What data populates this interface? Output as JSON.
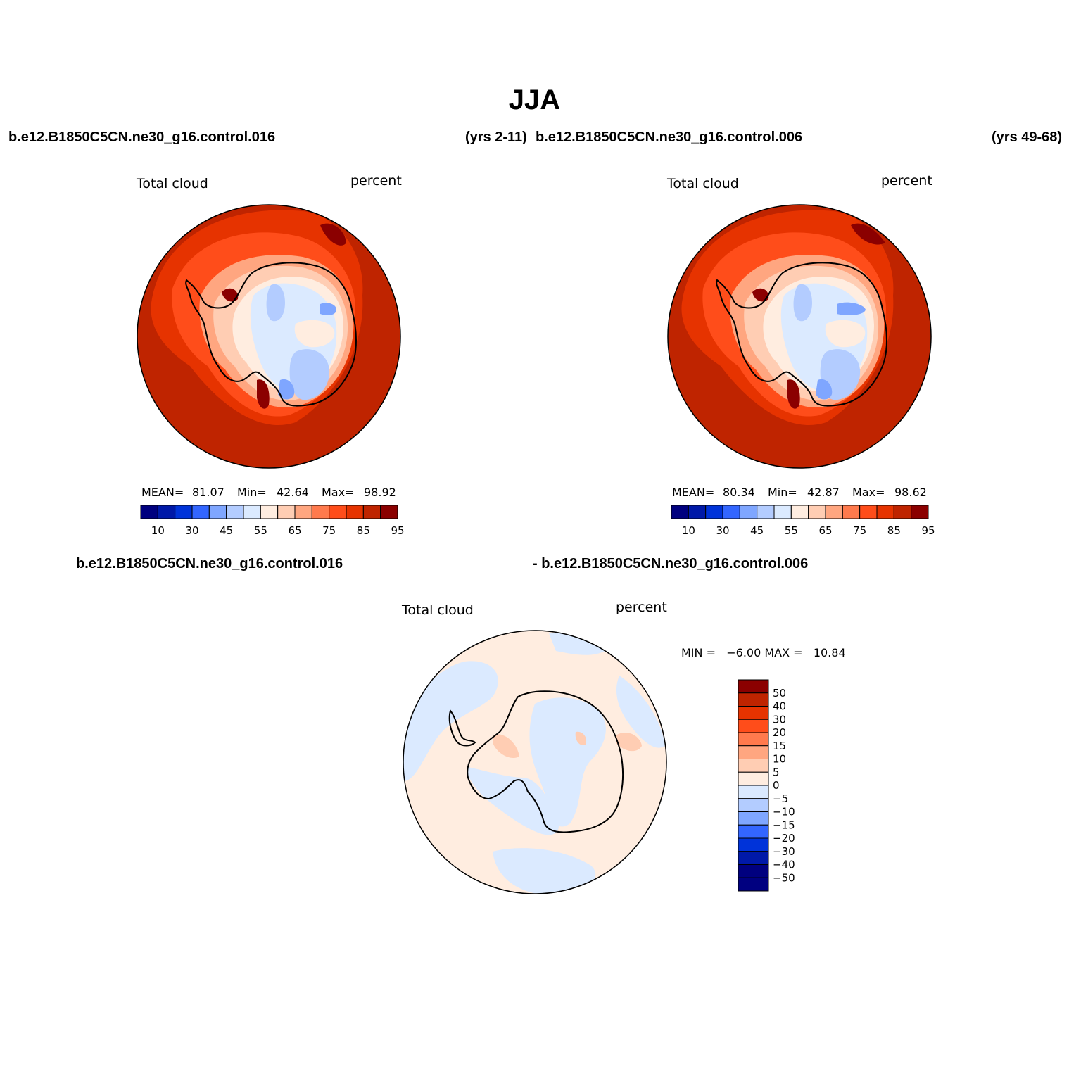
{
  "title": "JJA",
  "header": {
    "case1": "b.e12.B1850C5CN.ne30_g16.control.016",
    "case1_years": "(yrs 2-11)",
    "case2": "b.e12.B1850C5CN.ne30_g16.control.006",
    "case2_years": "(yrs 49-68)"
  },
  "panels": [
    {
      "variable": "Total cloud",
      "units": "percent",
      "stats": {
        "mean_label": "MEAN=",
        "mean": "81.07",
        "min_label": "Min=",
        "min": "42.64",
        "max_label": "Max=",
        "max": "98.92"
      }
    },
    {
      "variable": "Total cloud",
      "units": "percent",
      "stats": {
        "mean_label": "MEAN=",
        "mean": "80.34",
        "min_label": "Min=",
        "min": "42.87",
        "max_label": "Max=",
        "max": "98.62"
      }
    }
  ],
  "difference": {
    "header_left": "b.e12.B1850C5CN.ne30_g16.control.016",
    "header_right": "- b.e12.B1850C5CN.ne30_g16.control.006",
    "variable": "Total cloud",
    "units": "percent",
    "minmax": "MIN =   −6.00 MAX =   10.84"
  },
  "colorbar_main": {
    "colors": [
      "#00007f",
      "#0019a8",
      "#0033d9",
      "#3366ff",
      "#7fa6ff",
      "#b3ccff",
      "#dbeaff",
      "#ffede0",
      "#ffcdb3",
      "#ffa680",
      "#ff7a4d",
      "#ff4d1a",
      "#e63300",
      "#bf2400",
      "#8b0000"
    ],
    "tick_labels": [
      "10",
      "30",
      "45",
      "55",
      "65",
      "75",
      "85",
      "95"
    ]
  },
  "colorbar_diff": {
    "colors": [
      "#8b0000",
      "#bf2400",
      "#e63300",
      "#ff4d1a",
      "#ff7a4d",
      "#ffa680",
      "#ffcdb3",
      "#ffede0",
      "#dbeaff",
      "#b3ccff",
      "#7fa6ff",
      "#3366ff",
      "#0033d9",
      "#0019a8",
      "#00007f",
      "#000080"
    ],
    "tick_labels": [
      "50",
      "40",
      "30",
      "20",
      "15",
      "10",
      "5",
      "0",
      "−5",
      "−10",
      "−15",
      "−20",
      "−30",
      "−40",
      "−50"
    ]
  },
  "map_colors": {
    "ocean_far": "#bf2400",
    "ocean_mid": "#e63300",
    "ocean_near": "#ff4d1a",
    "coast_1": "#ffa680",
    "coast_2": "#ffcdb3",
    "interior_light": "#ffede0",
    "interior_blue_1": "#dbeaff",
    "interior_blue_2": "#b3ccff",
    "interior_blue_3": "#7fa6ff",
    "hot_spot": "#8b0000",
    "diff_positive": "#ffede0",
    "diff_negative": "#dbeaff",
    "diff_spot": "#ffcdb3"
  }
}
